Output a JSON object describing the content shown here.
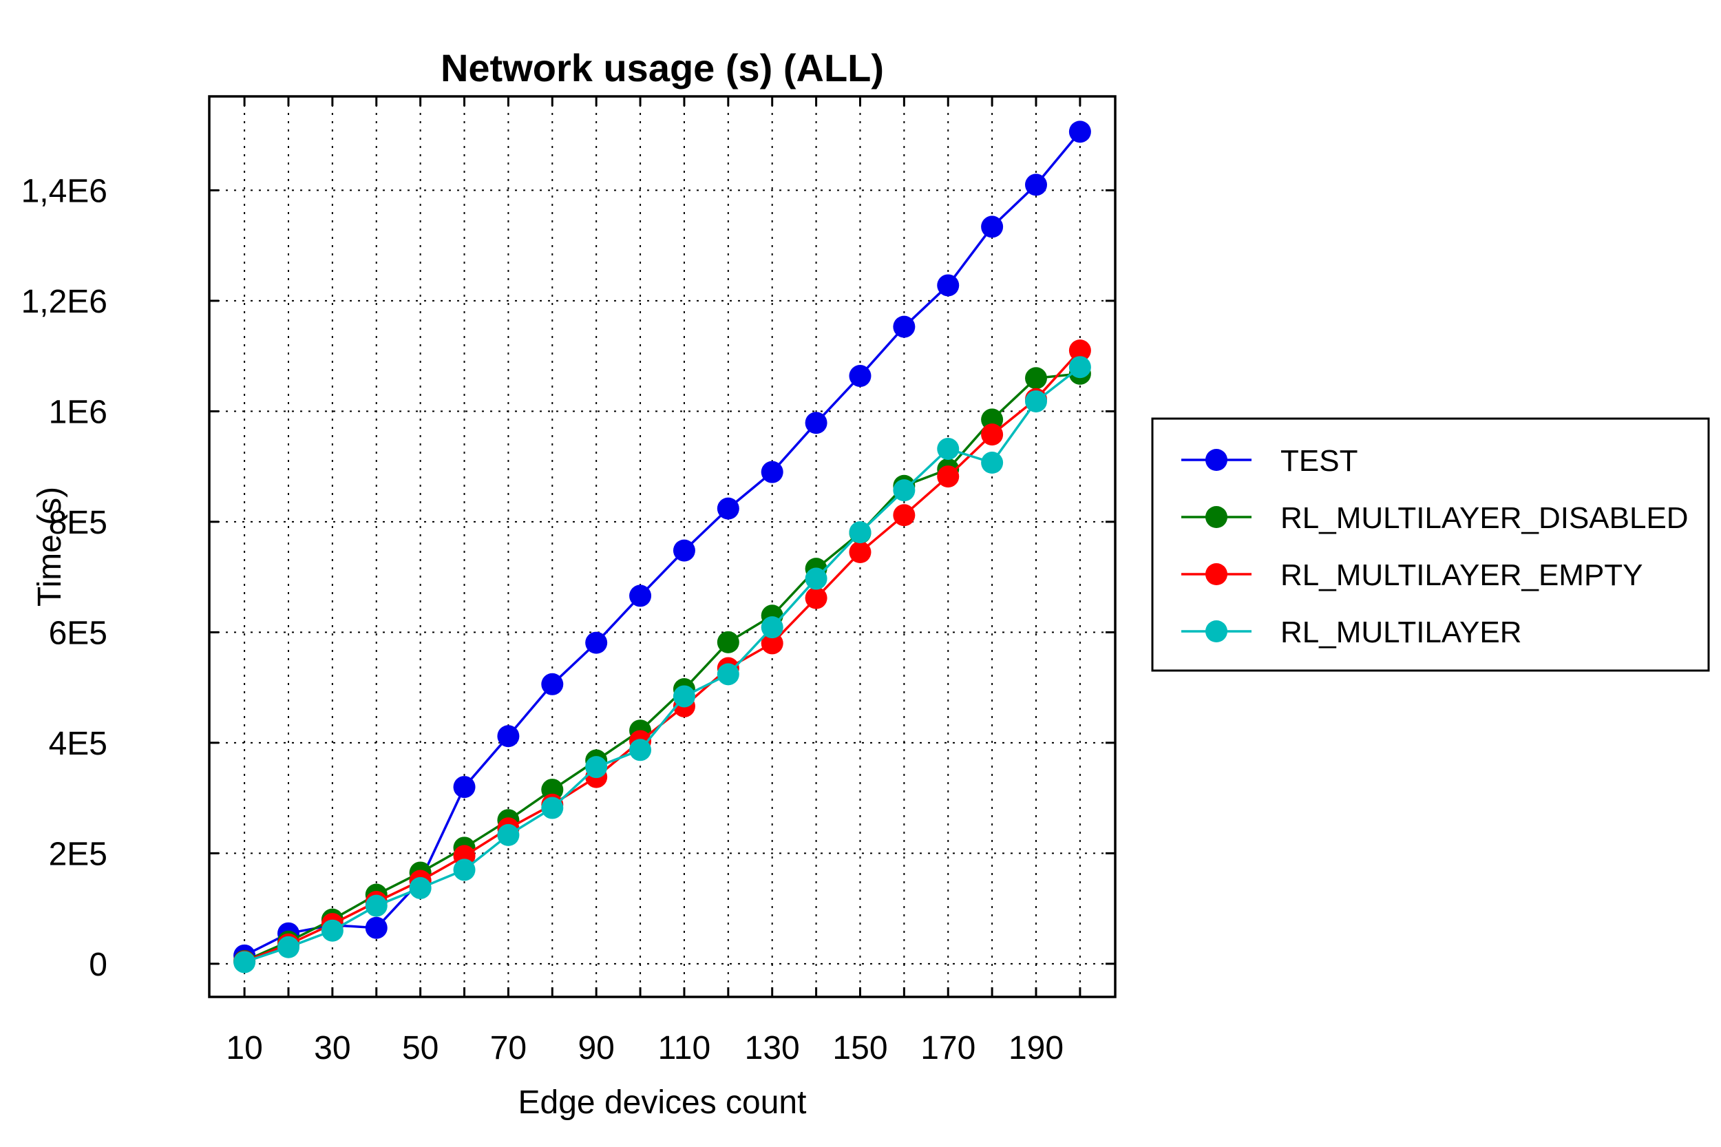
{
  "chart_data": {
    "type": "line",
    "title": "Network usage (s) (ALL)",
    "xlabel": "Edge devices count",
    "ylabel": "Time (s)",
    "xlim": [
      2,
      208
    ],
    "ylim": [
      -60000,
      1570000
    ],
    "x_ticks": [
      10,
      30,
      50,
      70,
      90,
      110,
      130,
      150,
      170,
      190
    ],
    "x_tick_labels": [
      "10",
      "30",
      "50",
      "70",
      "90",
      "110",
      "130",
      "150",
      "170",
      "190"
    ],
    "x_grid": [
      10,
      20,
      30,
      40,
      50,
      60,
      70,
      80,
      90,
      100,
      110,
      120,
      130,
      140,
      150,
      160,
      170,
      180,
      190,
      200
    ],
    "y_ticks": [
      0,
      200000,
      400000,
      600000,
      800000,
      1000000,
      1200000,
      1400000
    ],
    "y_tick_labels": [
      "0",
      "2E5",
      "4E5",
      "6E5",
      "8E5",
      "1E6",
      "1,2E6",
      "1,4E6"
    ],
    "grid": true,
    "legend_position": "right",
    "x": [
      10,
      20,
      30,
      40,
      50,
      60,
      70,
      80,
      90,
      100,
      110,
      120,
      130,
      140,
      150,
      160,
      170,
      180,
      190,
      200
    ],
    "series": [
      {
        "name": "TEST",
        "color": "#0000ee",
        "values": [
          15000,
          55000,
          70000,
          65000,
          150000,
          320000,
          412000,
          506000,
          581000,
          666000,
          748000,
          824000,
          890000,
          979000,
          1064000,
          1153000,
          1228000,
          1334000,
          1410000,
          1506000
        ]
      },
      {
        "name": "RL_MULTILAYER_DISABLED",
        "color": "#007800",
        "values": [
          5000,
          40000,
          80000,
          125000,
          165000,
          210000,
          260000,
          315000,
          368000,
          422000,
          497000,
          582000,
          630000,
          715000,
          780000,
          865000,
          895000,
          985000,
          1060000,
          1068000
        ]
      },
      {
        "name": "RL_MULTILAYER_EMPTY",
        "color": "#ff0000",
        "values": [
          4000,
          35000,
          72000,
          112000,
          150000,
          195000,
          245000,
          288000,
          338000,
          403000,
          466000,
          535000,
          580000,
          662000,
          745000,
          812000,
          882000,
          958000,
          1022000,
          1110000
        ]
      },
      {
        "name": "RL_MULTILAYER",
        "color": "#00bcbc",
        "values": [
          3000,
          30000,
          60000,
          105000,
          137000,
          170000,
          233000,
          282000,
          356000,
          387000,
          484000,
          524000,
          609000,
          697000,
          781000,
          857000,
          932000,
          907000,
          1018000,
          1080000
        ]
      }
    ]
  }
}
